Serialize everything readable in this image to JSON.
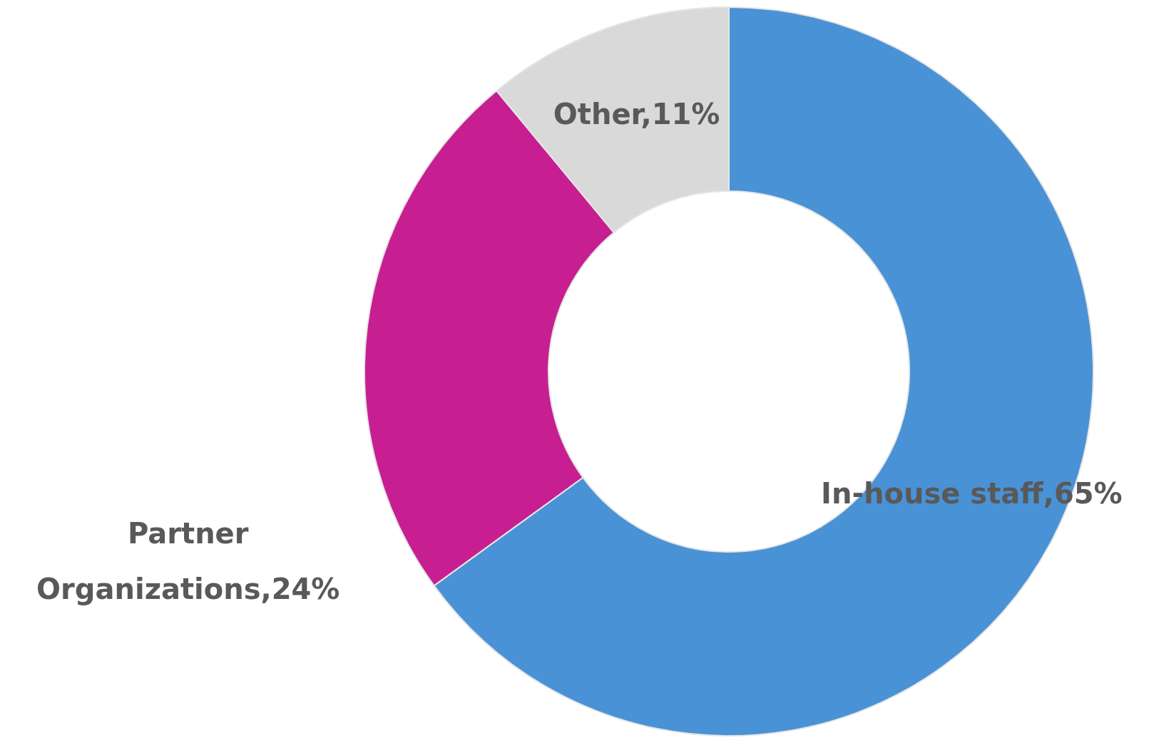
{
  "chart_data": {
    "type": "donut",
    "categories": [
      "In-house staff",
      "Partner Organizations",
      "Other"
    ],
    "values": [
      65,
      24,
      11
    ],
    "colors": [
      "#4a92d6",
      "#c71f91",
      "#d9d9d9"
    ],
    "value_labels": [
      "65%",
      "24%",
      "11%"
    ]
  }
}
